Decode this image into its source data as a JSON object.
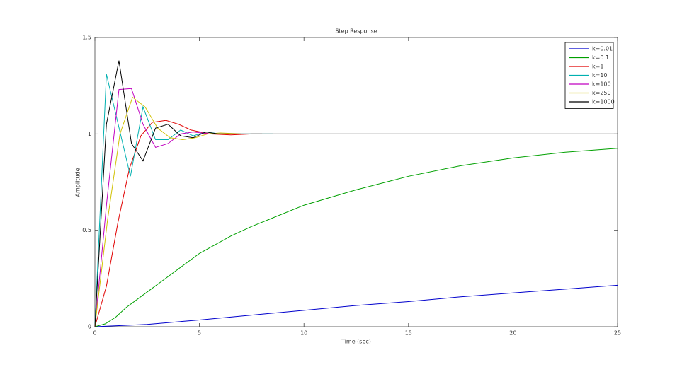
{
  "chart_data": {
    "type": "line",
    "title": "Step Response",
    "x_label": "Time (sec)",
    "y_label": "Amplitude",
    "xlim": [
      0,
      25
    ],
    "ylim": [
      0,
      1.5
    ],
    "xticks": [
      0,
      5,
      10,
      15,
      20,
      25
    ],
    "yticks": [
      0,
      0.5,
      1,
      1.5
    ],
    "legend": "upper right",
    "series": [
      {
        "name": "k=0.01",
        "color": "#0000cc",
        "x": [
          0,
          2.5,
          5,
          7.5,
          10,
          12.5,
          15,
          17.5,
          20,
          22.5,
          25
        ],
        "values": [
          0,
          0.012,
          0.035,
          0.06,
          0.085,
          0.11,
          0.13,
          0.155,
          0.175,
          0.195,
          0.215
        ]
      },
      {
        "name": "k=0.1",
        "color": "#00a000",
        "x": [
          0,
          0.5,
          1,
          1.5,
          2.5,
          3.5,
          5,
          6.5,
          7.5,
          10,
          12.5,
          15,
          17.5,
          20,
          22.5,
          25
        ],
        "values": [
          0,
          0.015,
          0.05,
          0.1,
          0.18,
          0.26,
          0.38,
          0.47,
          0.52,
          0.63,
          0.71,
          0.78,
          0.835,
          0.875,
          0.905,
          0.925
        ]
      },
      {
        "name": "k=1",
        "color": "#e00000",
        "x": [
          0,
          0.55,
          1.1,
          1.65,
          2.2,
          2.75,
          3.4,
          4,
          4.6,
          5.5,
          6.5,
          7.5,
          8
        ],
        "values": [
          0,
          0.21,
          0.54,
          0.82,
          0.99,
          1.06,
          1.07,
          1.05,
          1.02,
          1,
          0.995,
          1,
          1
        ]
      },
      {
        "name": "k=10",
        "color": "#00b0b0",
        "x": [
          0,
          0.55,
          1.7,
          2.3,
          2.9,
          3.5,
          4.1,
          4.7,
          5.3,
          6,
          8.5
        ],
        "values": [
          0,
          1.31,
          0.78,
          1.14,
          0.97,
          0.97,
          1.02,
          0.99,
          1.01,
          1,
          1
        ]
      },
      {
        "name": "k=100",
        "color": "#c000c0",
        "x": [
          0,
          0.57,
          1.15,
          1.75,
          2.3,
          2.9,
          3.5,
          4.1,
          4.7,
          5.5,
          6.5
        ],
        "values": [
          0,
          0.65,
          1.23,
          1.235,
          1.05,
          0.93,
          0.95,
          1,
          1.01,
          1,
          1
        ]
      },
      {
        "name": "k=250",
        "color": "#d0c000",
        "x": [
          0,
          0.6,
          1.2,
          1.8,
          2.4,
          3,
          3.6,
          4.2,
          4.8,
          5.4,
          6,
          7
        ],
        "values": [
          0,
          0.55,
          1,
          1.19,
          1.14,
          1.03,
          0.98,
          0.97,
          0.98,
          1,
          1.005,
          1
        ]
      },
      {
        "name": "k=1000",
        "color": "#000000",
        "x": [
          0,
          0.55,
          1.15,
          1.75,
          2.3,
          2.9,
          3.5,
          4.1,
          4.7,
          5.3,
          5.9,
          25
        ],
        "values": [
          0,
          1.05,
          1.38,
          0.95,
          0.86,
          1.03,
          1.05,
          0.99,
          0.98,
          1.01,
          1,
          1
        ]
      }
    ]
  }
}
